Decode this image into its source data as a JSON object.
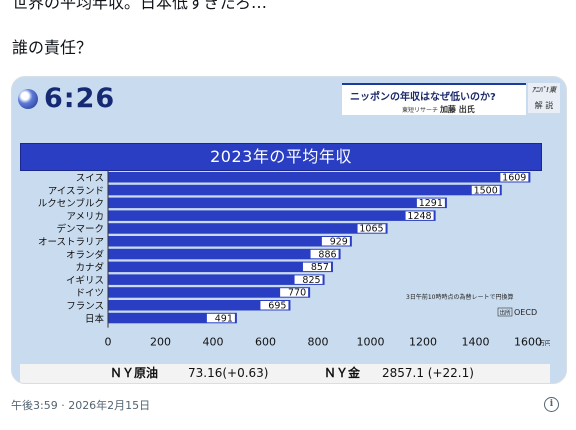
{
  "post": {
    "line1": "世界の平均年収。日本低すぎだろ…",
    "line2": "誰の責任？",
    "timestamp": "午後3:59 · 2026年2月15日"
  },
  "broadcast": {
    "time": "6:26",
    "topic_headline": "ニッポンの年収はなぜ低いのか?",
    "guest_org": "東短リサーチ",
    "guest_name": "加藤 出氏",
    "corner_logo": "ｱﾆﾊﾞ!東",
    "corner_label": "解 説",
    "source_note": "3日午前10時時点の為替レートで円換算",
    "source_label": "出所",
    "source_org": "OECD"
  },
  "ticker": {
    "oil_label": "ＮＹ原油",
    "oil_value": "73.16(+0.63)",
    "gold_label": "ＮＹ金",
    "gold_value": "2857.1 (+22.1)"
  },
  "colors": {
    "bar": "#2a3ec4",
    "bar_label_bg": "#ffffff",
    "banner": "#2a3ec4",
    "background": "#c9dcef"
  },
  "chart_data": {
    "type": "bar",
    "orientation": "horizontal",
    "title": "2023年の平均年収",
    "categories": [
      "スイス",
      "アイスランド",
      "ルクセンブルク",
      "アメリカ",
      "デンマーク",
      "オーストラリア",
      "オランダ",
      "カナダ",
      "イギリス",
      "ドイツ",
      "フランス",
      "日本"
    ],
    "values": [
      1609,
      1500,
      1291,
      1248,
      1065,
      929,
      886,
      857,
      825,
      770,
      695,
      491
    ],
    "x_ticks": [
      "0",
      "200",
      "400",
      "600",
      "800",
      "1000",
      "1200",
      "1400",
      "1600"
    ],
    "x_unit": "万円",
    "xlim": [
      0,
      1600
    ],
    "grid": false,
    "legend": "none"
  }
}
